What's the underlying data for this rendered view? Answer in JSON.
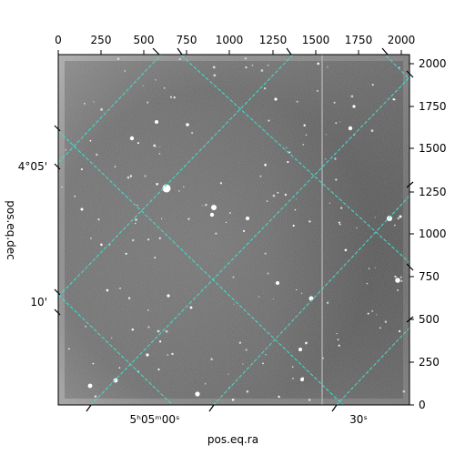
{
  "figure": {
    "pixel_axes": {
      "top_ticks": [
        "0",
        "250",
        "500",
        "750",
        "1000",
        "1250",
        "1500",
        "1750",
        "2000"
      ],
      "right_ticks": [
        "0",
        "250",
        "500",
        "750",
        "1000",
        "1250",
        "1500",
        "1750",
        "2000"
      ]
    },
    "world_axes": {
      "bottom_ticks": [
        "5ʰ05ᵐ00ˢ",
        "30ˢ"
      ],
      "left_ticks": [
        "4°05'",
        "10'"
      ],
      "xlabel": "pos.eq.ra",
      "ylabel": "pos.eq.dec"
    },
    "image": {
      "content": "grayscale astronomical star field",
      "grid_color": "#40e0d0",
      "background_level": "#8c8c8c",
      "artifact": "faint vertical bright column near right side"
    }
  }
}
